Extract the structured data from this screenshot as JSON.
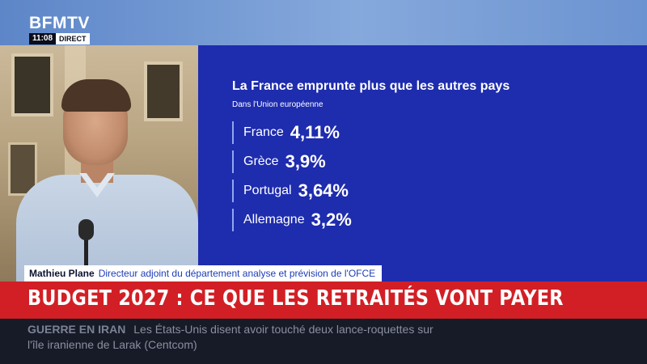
{
  "channel": {
    "logo": "BFMTV",
    "clock": "11:08",
    "live_label": "DIRECT"
  },
  "graphic": {
    "title": "La France emprunte plus que les autres pays",
    "subtitle": "Dans l'Union européenne",
    "rows": [
      {
        "country": "France",
        "value": "4,11%"
      },
      {
        "country": "Grèce",
        "value": "3,9%"
      },
      {
        "country": "Portugal",
        "value": "3,64%"
      },
      {
        "country": "Allemagne",
        "value": "3,2%"
      }
    ]
  },
  "guest": {
    "name": "Mathieu Plane",
    "role": "Directeur adjoint du département analyse et prévision de l'OFCE"
  },
  "headline": "BUDGET 2027 : CE QUE LES RETRAITÉS VONT PAYER",
  "ticker": {
    "tag": "GUERRE EN IRAN",
    "line1": "Les États-Unis disent avoir touché deux lance-roquettes sur",
    "line2": "l'île iranienne de Larak (Centcom)"
  },
  "colors": {
    "panel": "#1e2cae",
    "headline": "#d21f25",
    "topband": "#6c93d1"
  }
}
